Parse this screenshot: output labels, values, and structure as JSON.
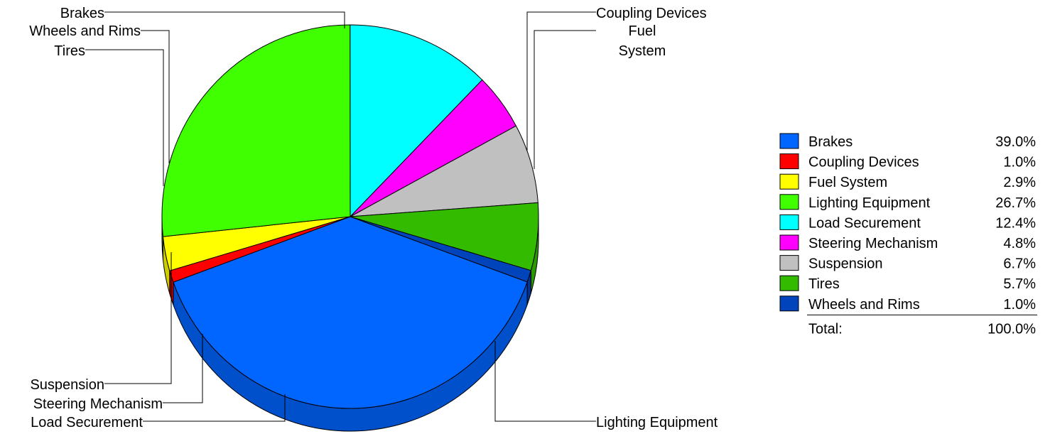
{
  "chart_data": {
    "type": "pie",
    "style": "3d",
    "slices": [
      {
        "label": "Brakes",
        "value": 39.0,
        "display": "39.0%",
        "color": "#0066FF",
        "side_color": "#0050CC"
      },
      {
        "label": "Coupling Devices",
        "value": 1.0,
        "display": "1.0%",
        "color": "#FF0000",
        "side_color": "#CC0000"
      },
      {
        "label": "Fuel System",
        "value": 2.9,
        "display": "2.9%",
        "color": "#FFFF00",
        "side_color": "#CCCC00"
      },
      {
        "label": "Lighting Equipment",
        "value": 26.7,
        "display": "26.7%",
        "color": "#40FF00",
        "side_color": "#33C400"
      },
      {
        "label": "Load Securement",
        "value": 12.4,
        "display": "12.4%",
        "color": "#00FFFF",
        "side_color": "#00C8C8"
      },
      {
        "label": "Steering Mechanism",
        "value": 4.8,
        "display": "4.8%",
        "color": "#FF00FF",
        "side_color": "#CC00CC"
      },
      {
        "label": "Suspension",
        "value": 6.7,
        "display": "6.7%",
        "color": "#C0C0C0",
        "side_color": "#999999"
      },
      {
        "label": "Tires",
        "value": 5.7,
        "display": "5.7%",
        "color": "#33BB00",
        "side_color": "#2A9900"
      },
      {
        "label": "Wheels and Rims",
        "value": 1.0,
        "display": "1.0%",
        "color": "#0044BB",
        "side_color": "#003399"
      }
    ],
    "callout_labels": {
      "brakes": "Brakes",
      "wheels": "Wheels and Rims",
      "tires": "Tires",
      "coupling": "Coupling Devices",
      "fuel_line1": "Fuel",
      "fuel_line2": "System",
      "suspension": "Suspension",
      "steering": "Steering Mechanism",
      "load": "Load Securement",
      "lighting": "Lighting Equipment"
    },
    "legend": {
      "placement": "right",
      "total_label": "Total:",
      "total_value": "100.0%"
    }
  }
}
